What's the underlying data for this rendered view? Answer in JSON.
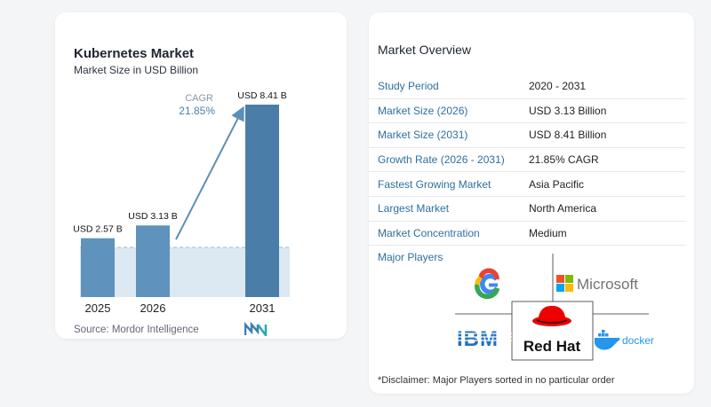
{
  "chart": {
    "title": "Kubernetes Market",
    "subtitle": "Market Size in USD Billion",
    "source": "Source: Mordor Intelligence",
    "cagr_label": "CAGR",
    "cagr_value": "21.85%"
  },
  "chart_data": {
    "type": "bar",
    "categories": [
      "2025",
      "2026",
      "2031"
    ],
    "values": [
      2.57,
      3.13,
      8.41
    ],
    "labels": [
      "USD 2.57 B",
      "USD 3.13 B",
      "USD 8.41 B"
    ],
    "ylim": [
      0,
      9
    ],
    "grid": false,
    "annotation": "CAGR 21.85%",
    "colors": {
      "bar_light": "#5f93bd",
      "bar_dark": "#4a7ea8",
      "arrow": "#5b8fba",
      "band": "#dce8f2"
    }
  },
  "overview": {
    "title": "Market Overview",
    "rows": [
      {
        "key": "Study Period",
        "value": "2020 - 2031"
      },
      {
        "key": "Market Size (2026)",
        "value": "USD 3.13 Billion"
      },
      {
        "key": "Market Size (2031)",
        "value": "USD 8.41 Billion"
      },
      {
        "key": "Growth Rate (2026 - 2031)",
        "value": "21.85% CAGR"
      },
      {
        "key": "Fastest Growing Market",
        "value": "Asia Pacific"
      },
      {
        "key": "Largest Market",
        "value": "North America"
      },
      {
        "key": "Market Concentration",
        "value": "Medium"
      }
    ],
    "players_title": "Major Players",
    "players": [
      "Google",
      "Microsoft",
      "IBM",
      "Red Hat",
      "docker"
    ],
    "disclaimer": "*Disclaimer: Major Players sorted in no particular order"
  }
}
